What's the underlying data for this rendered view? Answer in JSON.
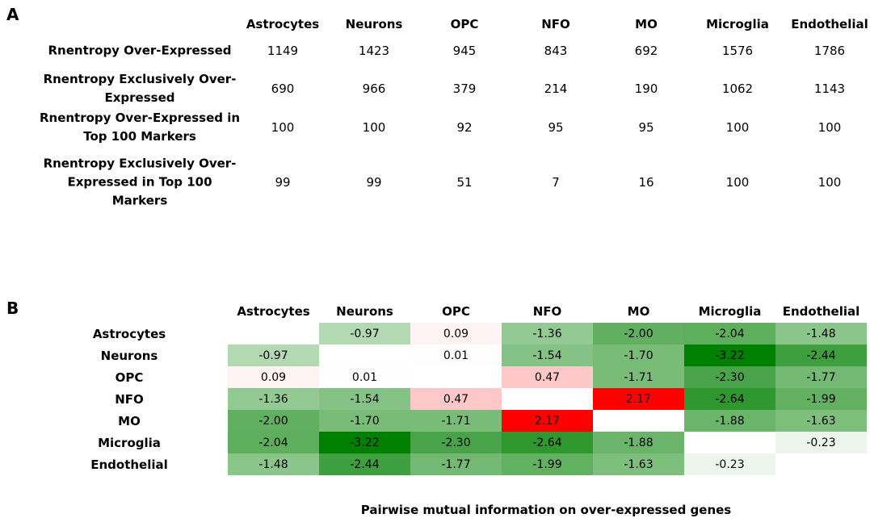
{
  "panel_a": {
    "label": "A",
    "columns": [
      "Astrocytes",
      "Neurons",
      "OPC",
      "NFO",
      "MO",
      "Microglia",
      "Endothelial"
    ],
    "rows": [
      {
        "label": "Rnentropy Over-Expressed",
        "cells": [
          1149,
          1423,
          945,
          843,
          692,
          1576,
          1786
        ]
      },
      {
        "label": "Rnentropy Exclusively Over-Expressed",
        "cells": [
          690,
          966,
          379,
          214,
          190,
          1062,
          1143
        ]
      },
      {
        "label": "Rnentropy Over-Expressed in Top 100 Markers",
        "cells": [
          100,
          100,
          92,
          95,
          95,
          100,
          100
        ]
      },
      {
        "label": "Rnentropy Exclusively Over-Expressed in Top 100 Markers",
        "cells": [
          99,
          99,
          51,
          7,
          16,
          100,
          100
        ]
      }
    ]
  },
  "panel_b": {
    "label": "B",
    "title": "Pairwise mutual information on over-expressed genes",
    "columns": [
      "Astrocytes",
      "Neurons",
      "OPC",
      "NFO",
      "MO",
      "Microglia",
      "Endothelial"
    ],
    "rows": [
      "Astrocytes",
      "Neurons",
      "OPC",
      "NFO",
      "MO",
      "Microglia",
      "Endothelial"
    ],
    "values": [
      [
        null,
        -0.97,
        0.09,
        -1.36,
        -2.0,
        -2.04,
        -1.48
      ],
      [
        -0.97,
        null,
        0.01,
        -1.54,
        -1.7,
        -3.22,
        -2.44
      ],
      [
        0.09,
        0.01,
        null,
        0.47,
        -1.71,
        -2.3,
        -1.77
      ],
      [
        -1.36,
        -1.54,
        0.47,
        null,
        2.17,
        -2.64,
        -1.99
      ],
      [
        -2.0,
        -1.7,
        -1.71,
        2.17,
        null,
        -1.88,
        -1.63
      ],
      [
        -2.04,
        -3.22,
        -2.3,
        -2.64,
        -1.88,
        null,
        -0.23
      ],
      [
        -1.48,
        -2.44,
        -1.77,
        -1.99,
        -1.63,
        -0.23,
        null
      ]
    ],
    "value_labels": [
      [
        null,
        "-0.97",
        "0.09",
        "-1.36",
        "-2.00",
        "-2.04",
        "-1.48"
      ],
      [
        "-0.97",
        null,
        "0.01",
        "-1.54",
        "-1.70",
        "-3.22",
        "-2.44"
      ],
      [
        "0.09",
        "0.01",
        null,
        "0.47",
        "-1.71",
        "-2.30",
        "-1.77"
      ],
      [
        "-1.36",
        "-1.54",
        "0.47",
        null,
        "2.17",
        "-2.64",
        "-1.99"
      ],
      [
        "-2.00",
        "-1.70",
        "-1.71",
        "2.17",
        null,
        "-1.88",
        "-1.63"
      ],
      [
        "-2.04",
        "-3.22",
        "-2.30",
        "-2.64",
        "-1.88",
        null,
        "-0.23"
      ],
      [
        "-1.48",
        "-2.44",
        "-1.77",
        "-1.99",
        "-1.63",
        "-0.23",
        null
      ]
    ]
  }
}
